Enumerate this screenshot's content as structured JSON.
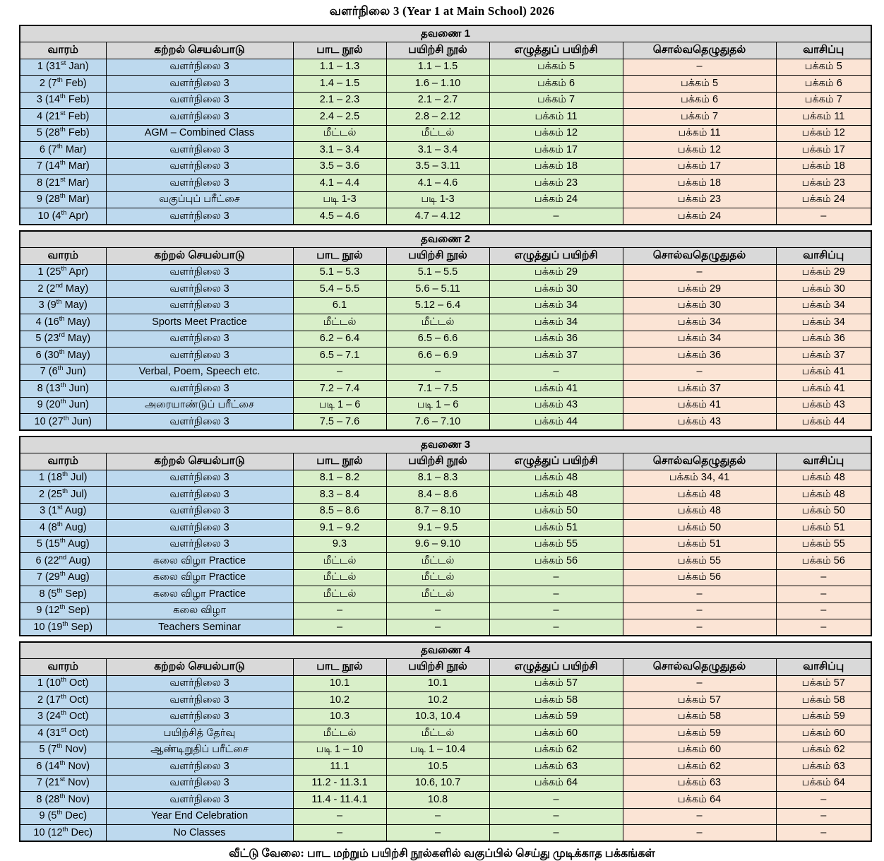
{
  "page": {
    "title": "வளர்நிலை 3 (Year 1 at Main School) 2026",
    "footer": "வீட்டு வேலை: பாட மற்றும் பயிற்சி நூல்களில் வகுப்பில் செய்து முடிக்காத பக்கங்கள்"
  },
  "colors": {
    "header_bg": "#d9d9d9",
    "week_activity_bg": "#bdd9ee",
    "books_writing_bg": "#d9efc9",
    "dictation_reading_bg": "#fbe4d5",
    "border": "#000000"
  },
  "columns": [
    "வாரம்",
    "கற்றல் செயல்பாடு",
    "பாட நூல்",
    "பயிற்சி நூல்",
    "எழுத்துப் பயிற்சி",
    "சொல்வதெழுதுதல்",
    "வாசிப்பு"
  ],
  "terms": [
    {
      "title": "தவணை 1",
      "rows": [
        [
          "1 (31st Jan)",
          "வளர்நிலை 3",
          "1.1 – 1.3",
          "1.1 – 1.5",
          "பக்கம் 5",
          "–",
          "பக்கம் 5"
        ],
        [
          "2 (7th Feb)",
          "வளர்நிலை 3",
          "1.4 – 1.5",
          "1.6 – 1.10",
          "பக்கம் 6",
          "பக்கம் 5",
          "பக்கம் 6"
        ],
        [
          "3 (14th Feb)",
          "வளர்நிலை 3",
          "2.1 – 2.3",
          "2.1 – 2.7",
          "பக்கம் 7",
          "பக்கம் 6",
          "பக்கம் 7"
        ],
        [
          "4 (21st Feb)",
          "வளர்நிலை 3",
          "2.4 – 2.5",
          "2.8 – 2.12",
          "பக்கம் 11",
          "பக்கம் 7",
          "பக்கம் 11"
        ],
        [
          "5 (28th Feb)",
          "AGM – Combined Class",
          "மீட்டல்",
          "மீட்டல்",
          "பக்கம் 12",
          "பக்கம் 11",
          "பக்கம் 12"
        ],
        [
          "6 (7th Mar)",
          "வளர்நிலை 3",
          "3.1 – 3.4",
          "3.1 – 3.4",
          "பக்கம் 17",
          "பக்கம் 12",
          "பக்கம் 17"
        ],
        [
          "7 (14th Mar)",
          "வளர்நிலை 3",
          "3.5 – 3.6",
          "3.5 – 3.11",
          "பக்கம் 18",
          "பக்கம் 17",
          "பக்கம் 18"
        ],
        [
          "8 (21st Mar)",
          "வளர்நிலை 3",
          "4.1 – 4.4",
          "4.1 – 4.6",
          "பக்கம் 23",
          "பக்கம் 18",
          "பக்கம் 23"
        ],
        [
          "9 (28th Mar)",
          "வகுப்புப் பரீட்சை",
          "படி 1-3",
          "படி 1-3",
          "பக்கம் 24",
          "பக்கம் 23",
          "பக்கம் 24"
        ],
        [
          "10 (4th Apr)",
          "வளர்நிலை 3",
          "4.5 – 4.6",
          "4.7 – 4.12",
          "–",
          "பக்கம் 24",
          "–"
        ]
      ]
    },
    {
      "title": "தவணை 2",
      "rows": [
        [
          "1 (25th Apr)",
          "வளர்நிலை 3",
          "5.1 – 5.3",
          "5.1 – 5.5",
          "பக்கம் 29",
          "–",
          "பக்கம் 29"
        ],
        [
          "2 (2nd May)",
          "வளர்நிலை 3",
          "5.4 – 5.5",
          "5.6 – 5.11",
          "பக்கம் 30",
          "பக்கம் 29",
          "பக்கம் 30"
        ],
        [
          "3 (9th May)",
          "வளர்நிலை 3",
          "6.1",
          "5.12 – 6.4",
          "பக்கம் 34",
          "பக்கம் 30",
          "பக்கம் 34"
        ],
        [
          "4 (16th May)",
          "Sports Meet Practice",
          "மீட்டல்",
          "மீட்டல்",
          "பக்கம் 34",
          "பக்கம் 34",
          "பக்கம் 34"
        ],
        [
          "5 (23rd May)",
          "வளர்நிலை 3",
          "6.2 – 6.4",
          "6.5 – 6.6",
          "பக்கம் 36",
          "பக்கம் 34",
          "பக்கம் 36"
        ],
        [
          "6 (30th May)",
          "வளர்நிலை 3",
          "6.5 – 7.1",
          "6.6 – 6.9",
          "பக்கம் 37",
          "பக்கம் 36",
          "பக்கம் 37"
        ],
        [
          "7 (6th Jun)",
          "Verbal, Poem, Speech etc.",
          "–",
          "–",
          "–",
          "–",
          "பக்கம் 41"
        ],
        [
          "8 (13th Jun)",
          "வளர்நிலை 3",
          "7.2 – 7.4",
          "7.1 – 7.5",
          "பக்கம் 41",
          "பக்கம் 37",
          "பக்கம் 41"
        ],
        [
          "9 (20th Jun)",
          "அரையாண்டுப் பரீட்சை",
          "படி 1 – 6",
          "படி 1 – 6",
          "பக்கம் 43",
          "பக்கம் 41",
          "பக்கம் 43"
        ],
        [
          "10 (27th Jun)",
          "வளர்நிலை 3",
          "7.5 – 7.6",
          "7.6 – 7.10",
          "பக்கம் 44",
          "பக்கம் 43",
          "பக்கம் 44"
        ]
      ]
    },
    {
      "title": "தவணை 3",
      "rows": [
        [
          "1 (18th Jul)",
          "வளர்நிலை 3",
          "8.1 – 8.2",
          "8.1 – 8.3",
          "பக்கம் 48",
          "பக்கம் 34, 41",
          "பக்கம் 48"
        ],
        [
          "2 (25th Jul)",
          "வளர்நிலை 3",
          "8.3 – 8.4",
          "8.4 – 8.6",
          "பக்கம் 48",
          "பக்கம் 48",
          "பக்கம் 48"
        ],
        [
          "3 (1st Aug)",
          "வளர்நிலை 3",
          "8.5 – 8.6",
          "8.7 – 8.10",
          "பக்கம் 50",
          "பக்கம் 48",
          "பக்கம் 50"
        ],
        [
          "4 (8th Aug)",
          "வளர்நிலை 3",
          "9.1 – 9.2",
          "9.1 – 9.5",
          "பக்கம் 51",
          "பக்கம் 50",
          "பக்கம் 51"
        ],
        [
          "5 (15th Aug)",
          "வளர்நிலை 3",
          "9.3",
          "9.6 – 9.10",
          "பக்கம் 55",
          "பக்கம் 51",
          "பக்கம் 55"
        ],
        [
          "6 (22nd Aug)",
          "கலை விழா Practice",
          "மீட்டல்",
          "மீட்டல்",
          "பக்கம் 56",
          "பக்கம் 55",
          "பக்கம் 56"
        ],
        [
          "7 (29th Aug)",
          "கலை விழா Practice",
          "மீட்டல்",
          "மீட்டல்",
          "–",
          "பக்கம் 56",
          "–"
        ],
        [
          "8 (5th Sep)",
          "கலை விழா Practice",
          "மீட்டல்",
          "மீட்டல்",
          "–",
          "–",
          "–"
        ],
        [
          "9 (12th Sep)",
          "கலை விழா",
          "–",
          "–",
          "–",
          "–",
          "–"
        ],
        [
          "10 (19th Sep)",
          "Teachers Seminar",
          "–",
          "–",
          "–",
          "–",
          "–"
        ]
      ]
    },
    {
      "title": "தவணை 4",
      "rows": [
        [
          "1 (10th Oct)",
          "வளர்நிலை 3",
          "10.1",
          "10.1",
          "பக்கம் 57",
          "–",
          "பக்கம் 57"
        ],
        [
          "2 (17th Oct)",
          "வளர்நிலை 3",
          "10.2",
          "10.2",
          "பக்கம் 58",
          "பக்கம் 57",
          "பக்கம் 58"
        ],
        [
          "3 (24th Oct)",
          "வளர்நிலை 3",
          "10.3",
          "10.3, 10.4",
          "பக்கம் 59",
          "பக்கம் 58",
          "பக்கம் 59"
        ],
        [
          "4 (31st Oct)",
          "பயிற்சித் தேர்வு",
          "மீட்டல்",
          "மீட்டல்",
          "பக்கம் 60",
          "பக்கம் 59",
          "பக்கம் 60"
        ],
        [
          "5 (7th Nov)",
          "ஆண்டிறுதிப் பரீட்சை",
          "படி 1 – 10",
          "படி 1 – 10.4",
          "பக்கம் 62",
          "பக்கம் 60",
          "பக்கம் 62"
        ],
        [
          "6 (14th Nov)",
          "வளர்நிலை 3",
          "11.1",
          "10.5",
          "பக்கம் 63",
          "பக்கம் 62",
          "பக்கம் 63"
        ],
        [
          "7 (21st Nov)",
          "வளர்நிலை 3",
          "11.2 - 11.3.1",
          "10.6, 10.7",
          "பக்கம் 64",
          "பக்கம் 63",
          "பக்கம் 64"
        ],
        [
          "8 (28th Nov)",
          "வளர்நிலை 3",
          "11.4 - 11.4.1",
          "10.8",
          "–",
          "பக்கம் 64",
          "–"
        ],
        [
          "9 (5th Dec)",
          "Year End Celebration",
          "–",
          "–",
          "–",
          "–",
          "–"
        ],
        [
          "10 (12th Dec)",
          "No Classes",
          "–",
          "–",
          "–",
          "–",
          "–"
        ]
      ]
    }
  ]
}
